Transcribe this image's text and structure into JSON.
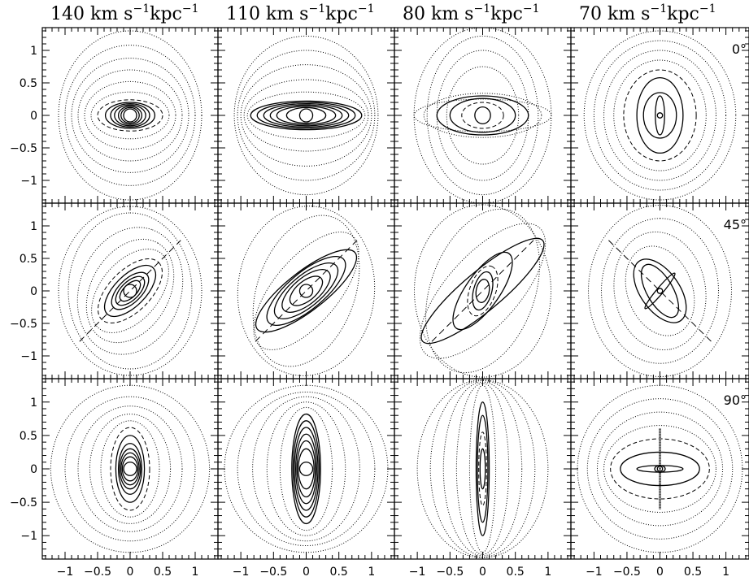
{
  "figure": {
    "column_titles": [
      {
        "value": "140",
        "unit": "km s",
        "exp1": "−1",
        "kpc": "kpc",
        "exp2": "−1"
      },
      {
        "value": "110",
        "unit": "km s",
        "exp1": "−1",
        "kpc": "kpc",
        "exp2": "−1"
      },
      {
        "value": "80",
        "unit": "km s",
        "exp1": "−1",
        "kpc": "kpc",
        "exp2": "−1"
      },
      {
        "value": "70",
        "unit": "km s",
        "exp1": "−1",
        "kpc": "kpc",
        "exp2": "−1"
      }
    ],
    "row_labels": [
      "0°",
      "45°",
      "90°"
    ]
  },
  "chart_data": {
    "type": "scatter",
    "description_of_grid": "3 rows x 4 columns of orbit panels",
    "xlim": [
      -1.35,
      1.35
    ],
    "ylim": [
      -1.35,
      1.35
    ],
    "x_ticks": [
      -1,
      -0.5,
      0,
      0.5,
      1
    ],
    "x_tick_labels": [
      "−1",
      "−0.5",
      "0",
      "0.5",
      "1"
    ],
    "y_ticks": [
      -1,
      -0.5,
      0,
      0.5,
      1
    ],
    "y_tick_labels": [
      "−1",
      "−0.5",
      "0",
      "0.5",
      "1"
    ],
    "columns": [
      "140 km s−1kpc−1",
      "110 km s−1kpc−1",
      "80 km s−1kpc−1",
      "70 km s−1kpc−1"
    ],
    "rows": [
      "0°",
      "45°",
      "90°"
    ],
    "panels": [
      {
        "row": 0,
        "col": 0,
        "angle_deg": 0,
        "orbits": [
          {
            "a": 0.1,
            "b": 0.1,
            "style": "solid"
          },
          {
            "a": 0.14,
            "b": 0.12,
            "style": "solid"
          },
          {
            "a": 0.18,
            "b": 0.14,
            "style": "solid"
          },
          {
            "a": 0.24,
            "b": 0.16,
            "style": "solid"
          },
          {
            "a": 0.3,
            "b": 0.18,
            "style": "solid"
          },
          {
            "a": 0.38,
            "b": 0.2,
            "style": "solid"
          },
          {
            "a": 0.5,
            "b": 0.24,
            "style": "dash"
          },
          {
            "a": 0.6,
            "b": 0.36,
            "style": "dot"
          },
          {
            "a": 0.7,
            "b": 0.52,
            "style": "dot"
          },
          {
            "a": 0.8,
            "b": 0.7,
            "style": "dot"
          },
          {
            "a": 0.9,
            "b": 0.88,
            "style": "dot"
          },
          {
            "a": 1.0,
            "b": 1.08,
            "style": "dot"
          },
          {
            "a": 1.1,
            "b": 1.3,
            "style": "dot"
          }
        ]
      },
      {
        "row": 0,
        "col": 1,
        "angle_deg": 0,
        "orbits": [
          {
            "a": 0.1,
            "b": 0.1,
            "style": "solid"
          },
          {
            "a": 0.3,
            "b": 0.12,
            "style": "solid"
          },
          {
            "a": 0.45,
            "b": 0.14,
            "style": "solid"
          },
          {
            "a": 0.55,
            "b": 0.16,
            "style": "solid"
          },
          {
            "a": 0.65,
            "b": 0.18,
            "style": "solid"
          },
          {
            "a": 0.75,
            "b": 0.2,
            "style": "solid"
          },
          {
            "a": 0.85,
            "b": 0.22,
            "style": "solid"
          },
          {
            "a": 0.9,
            "b": 0.36,
            "style": "dot"
          },
          {
            "a": 0.95,
            "b": 0.55,
            "style": "dot"
          },
          {
            "a": 1.0,
            "b": 0.78,
            "style": "dot"
          },
          {
            "a": 1.05,
            "b": 1.0,
            "style": "dot"
          },
          {
            "a": 1.1,
            "b": 1.22,
            "style": "dot"
          }
        ]
      },
      {
        "row": 0,
        "col": 2,
        "angle_deg": 0,
        "orbits": [
          {
            "a": 0.12,
            "b": 0.13,
            "style": "solid"
          },
          {
            "a": 0.32,
            "b": 0.2,
            "style": "dash"
          },
          {
            "a": 0.5,
            "b": 0.26,
            "style": "solid"
          },
          {
            "a": 0.7,
            "b": 0.3,
            "style": "solid"
          },
          {
            "a": 0.9,
            "b": 0.34,
            "style": "dot"
          },
          {
            "a": 1.05,
            "b": 0.25,
            "style": "dot"
          },
          {
            "a": 0.55,
            "b": 0.75,
            "style": "dot"
          },
          {
            "a": 0.7,
            "b": 1.0,
            "style": "dot"
          },
          {
            "a": 0.85,
            "b": 1.22,
            "style": "dot"
          },
          {
            "a": 1.05,
            "b": 1.35,
            "style": "dot"
          }
        ]
      },
      {
        "row": 0,
        "col": 3,
        "angle_deg": 0,
        "orbits": [
          {
            "a": 0.04,
            "b": 0.04,
            "style": "solid"
          },
          {
            "a": 0.07,
            "b": 0.3,
            "style": "solid"
          },
          {
            "a": 0.25,
            "b": 0.35,
            "style": "solid"
          },
          {
            "a": 0.35,
            "b": 0.58,
            "style": "solid"
          },
          {
            "a": 0.55,
            "b": 0.7,
            "style": "dash"
          },
          {
            "a": 0.7,
            "b": 0.85,
            "style": "dot"
          },
          {
            "a": 0.85,
            "b": 1.0,
            "style": "dot"
          },
          {
            "a": 1.0,
            "b": 1.15,
            "style": "dot"
          },
          {
            "a": 1.15,
            "b": 1.3,
            "style": "dot"
          }
        ]
      },
      {
        "row": 1,
        "col": 0,
        "angle_deg": 45,
        "major_axis_line": true,
        "orbits": [
          {
            "a": 0.1,
            "b": 0.1,
            "rot": 45,
            "style": "solid"
          },
          {
            "a": 0.2,
            "b": 0.1,
            "rot": 45,
            "style": "solid"
          },
          {
            "a": 0.28,
            "b": 0.14,
            "rot": 45,
            "style": "solid"
          },
          {
            "a": 0.36,
            "b": 0.18,
            "rot": 45,
            "style": "solid"
          },
          {
            "a": 0.5,
            "b": 0.24,
            "rot": 45,
            "style": "solid"
          },
          {
            "a": 0.62,
            "b": 0.32,
            "rot": 45,
            "style": "dash"
          },
          {
            "a": 0.75,
            "b": 0.45,
            "rot": 50,
            "style": "dot"
          },
          {
            "a": 0.85,
            "b": 0.6,
            "rot": 60,
            "style": "dot"
          },
          {
            "a": 1.0,
            "b": 0.78,
            "rot": 70,
            "style": "dot"
          },
          {
            "a": 1.2,
            "b": 0.95,
            "rot": 90,
            "style": "dot"
          },
          {
            "a": 1.3,
            "b": 1.1,
            "rot": 90,
            "style": "dot"
          }
        ]
      },
      {
        "row": 1,
        "col": 1,
        "angle_deg": 45,
        "major_axis_line": true,
        "orbits": [
          {
            "a": 0.1,
            "b": 0.1,
            "rot": 40,
            "style": "solid"
          },
          {
            "a": 0.3,
            "b": 0.15,
            "rot": 40,
            "style": "solid"
          },
          {
            "a": 0.45,
            "b": 0.2,
            "rot": 40,
            "style": "solid"
          },
          {
            "a": 0.6,
            "b": 0.24,
            "rot": 40,
            "style": "solid"
          },
          {
            "a": 0.75,
            "b": 0.28,
            "rot": 40,
            "style": "solid"
          },
          {
            "a": 0.95,
            "b": 0.3,
            "rot": 38,
            "style": "solid"
          },
          {
            "a": 1.1,
            "b": 0.5,
            "rot": 50,
            "style": "dot"
          },
          {
            "a": 1.2,
            "b": 0.75,
            "rot": 70,
            "style": "dot"
          },
          {
            "a": 1.3,
            "b": 1.05,
            "rot": 85,
            "style": "dot"
          }
        ]
      },
      {
        "row": 1,
        "col": 2,
        "angle_deg": 45,
        "major_axis_line": true,
        "orbits": [
          {
            "a": 0.18,
            "b": 0.1,
            "rot": 80,
            "style": "solid"
          },
          {
            "a": 0.3,
            "b": 0.14,
            "rot": 75,
            "style": "solid"
          },
          {
            "a": 0.4,
            "b": 0.2,
            "rot": 70,
            "style": "dash"
          },
          {
            "a": 0.7,
            "b": 0.26,
            "rot": 55,
            "style": "solid"
          },
          {
            "a": 1.2,
            "b": 0.3,
            "rot": 40,
            "style": "solid"
          },
          {
            "a": 1.3,
            "b": 0.55,
            "rot": 48,
            "style": "dot"
          },
          {
            "a": 1.3,
            "b": 0.8,
            "rot": 70,
            "style": "dot"
          },
          {
            "a": 1.32,
            "b": 1.05,
            "rot": 90,
            "style": "dot"
          }
        ]
      },
      {
        "row": 1,
        "col": 3,
        "angle_deg": 45,
        "minor_axis_line": true,
        "orbits": [
          {
            "a": 0.04,
            "b": 0.04,
            "rot": 0,
            "style": "solid"
          },
          {
            "a": 0.35,
            "b": 0.05,
            "rot": 50,
            "style": "solid"
          },
          {
            "a": 0.45,
            "b": 0.2,
            "rot": -60,
            "style": "solid"
          },
          {
            "a": 0.55,
            "b": 0.3,
            "rot": -55,
            "style": "solid"
          },
          {
            "a": 0.7,
            "b": 0.5,
            "rot": -70,
            "style": "dot"
          },
          {
            "a": 0.9,
            "b": 0.7,
            "rot": -80,
            "style": "dot"
          },
          {
            "a": 1.1,
            "b": 0.9,
            "rot": 90,
            "style": "dot"
          },
          {
            "a": 1.3,
            "b": 1.1,
            "rot": 90,
            "style": "dot"
          }
        ]
      },
      {
        "row": 2,
        "col": 0,
        "angle_deg": 90,
        "orbits": [
          {
            "a": 0.1,
            "b": 0.1,
            "style": "solid"
          },
          {
            "a": 0.12,
            "b": 0.18,
            "style": "solid"
          },
          {
            "a": 0.14,
            "b": 0.24,
            "style": "solid"
          },
          {
            "a": 0.16,
            "b": 0.3,
            "style": "solid"
          },
          {
            "a": 0.18,
            "b": 0.38,
            "style": "solid"
          },
          {
            "a": 0.22,
            "b": 0.5,
            "style": "solid"
          },
          {
            "a": 0.3,
            "b": 0.62,
            "style": "dash"
          },
          {
            "a": 0.45,
            "b": 0.72,
            "style": "dot"
          },
          {
            "a": 0.62,
            "b": 0.82,
            "style": "dot"
          },
          {
            "a": 0.8,
            "b": 0.94,
            "style": "dot"
          },
          {
            "a": 1.0,
            "b": 1.08,
            "style": "dot"
          },
          {
            "a": 1.22,
            "b": 1.25,
            "style": "dot"
          }
        ]
      },
      {
        "row": 2,
        "col": 1,
        "angle_deg": 90,
        "orbits": [
          {
            "a": 0.1,
            "b": 0.1,
            "style": "solid"
          },
          {
            "a": 0.12,
            "b": 0.3,
            "style": "solid"
          },
          {
            "a": 0.14,
            "b": 0.42,
            "style": "solid"
          },
          {
            "a": 0.16,
            "b": 0.52,
            "style": "solid"
          },
          {
            "a": 0.18,
            "b": 0.62,
            "style": "solid"
          },
          {
            "a": 0.2,
            "b": 0.72,
            "style": "solid"
          },
          {
            "a": 0.22,
            "b": 0.82,
            "style": "solid"
          },
          {
            "a": 0.4,
            "b": 0.92,
            "style": "dot"
          },
          {
            "a": 0.6,
            "b": 1.0,
            "style": "dot"
          },
          {
            "a": 0.82,
            "b": 1.08,
            "style": "dot"
          },
          {
            "a": 1.05,
            "b": 1.15,
            "style": "dot"
          },
          {
            "a": 1.25,
            "b": 1.25,
            "style": "dot"
          }
        ]
      },
      {
        "row": 2,
        "col": 2,
        "angle_deg": 90,
        "orbits": [
          {
            "a": 0.04,
            "b": 0.3,
            "style": "solid"
          },
          {
            "a": 0.06,
            "b": 0.55,
            "style": "dash"
          },
          {
            "a": 0.08,
            "b": 0.8,
            "style": "solid"
          },
          {
            "a": 0.1,
            "b": 1.0,
            "style": "solid"
          },
          {
            "a": 0.2,
            "b": 1.25,
            "style": "dot"
          },
          {
            "a": 0.4,
            "b": 1.28,
            "style": "dot"
          },
          {
            "a": 0.6,
            "b": 1.3,
            "style": "dot"
          },
          {
            "a": 0.8,
            "b": 1.32,
            "style": "dot"
          },
          {
            "a": 1.0,
            "b": 1.33,
            "style": "dot"
          }
        ]
      },
      {
        "row": 2,
        "col": 3,
        "angle_deg": 90,
        "vertical_bar": true,
        "orbits": [
          {
            "a": 0.04,
            "b": 0.04,
            "style": "solid"
          },
          {
            "a": 0.08,
            "b": 0.05,
            "style": "solid"
          },
          {
            "a": 0.35,
            "b": 0.05,
            "style": "solid"
          },
          {
            "a": 0.6,
            "b": 0.25,
            "style": "solid"
          },
          {
            "a": 0.75,
            "b": 0.45,
            "style": "dash"
          },
          {
            "a": 0.85,
            "b": 0.65,
            "style": "dot"
          },
          {
            "a": 0.95,
            "b": 0.85,
            "style": "dot"
          },
          {
            "a": 1.1,
            "b": 1.05,
            "style": "dot"
          },
          {
            "a": 1.25,
            "b": 1.25,
            "style": "dot"
          }
        ]
      }
    ]
  }
}
